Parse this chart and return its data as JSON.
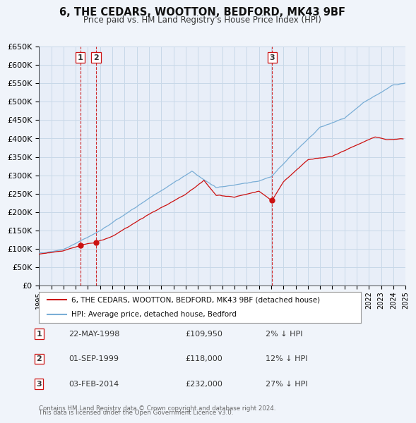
{
  "title": "6, THE CEDARS, WOOTTON, BEDFORD, MK43 9BF",
  "subtitle": "Price paid vs. HM Land Registry's House Price Index (HPI)",
  "hpi_label": "HPI: Average price, detached house, Bedford",
  "property_label": "6, THE CEDARS, WOOTTON, BEDFORD, MK43 9BF (detached house)",
  "hpi_color": "#7aaed6",
  "property_color": "#cc1111",
  "marker_color": "#cc1111",
  "vline_color": "#cc1111",
  "grid_color": "#c8d8e8",
  "bg_color": "#f0f4fa",
  "plot_bg": "#e8eef8",
  "transactions": [
    {
      "label": "1",
      "date_str": "22-MAY-1998",
      "date_num": 1998.384,
      "price": 109950,
      "pct": "2%",
      "direction": "↓"
    },
    {
      "label": "2",
      "date_str": "01-SEP-1999",
      "date_num": 1999.667,
      "price": 118000,
      "pct": "12%",
      "direction": "↓"
    },
    {
      "label": "3",
      "date_str": "03-FEB-2014",
      "date_num": 2014.09,
      "price": 232000,
      "pct": "27%",
      "direction": "↓"
    }
  ],
  "footer1": "Contains HM Land Registry data © Crown copyright and database right 2024.",
  "footer2": "This data is licensed under the Open Government Licence v3.0.",
  "ylim": [
    0,
    650000
  ],
  "yticks": [
    0,
    50000,
    100000,
    150000,
    200000,
    250000,
    300000,
    350000,
    400000,
    450000,
    500000,
    550000,
    600000,
    650000
  ],
  "ytick_labels": [
    "£0",
    "£50K",
    "£100K",
    "£150K",
    "£200K",
    "£250K",
    "£300K",
    "£350K",
    "£400K",
    "£450K",
    "£500K",
    "£550K",
    "£600K",
    "£650K"
  ],
  "xlim": [
    1995,
    2025
  ],
  "xtick_years": [
    1995,
    1996,
    1997,
    1998,
    1999,
    2000,
    2001,
    2002,
    2003,
    2004,
    2005,
    2006,
    2007,
    2008,
    2009,
    2010,
    2011,
    2012,
    2013,
    2014,
    2015,
    2016,
    2017,
    2018,
    2019,
    2020,
    2021,
    2022,
    2023,
    2024,
    2025
  ]
}
